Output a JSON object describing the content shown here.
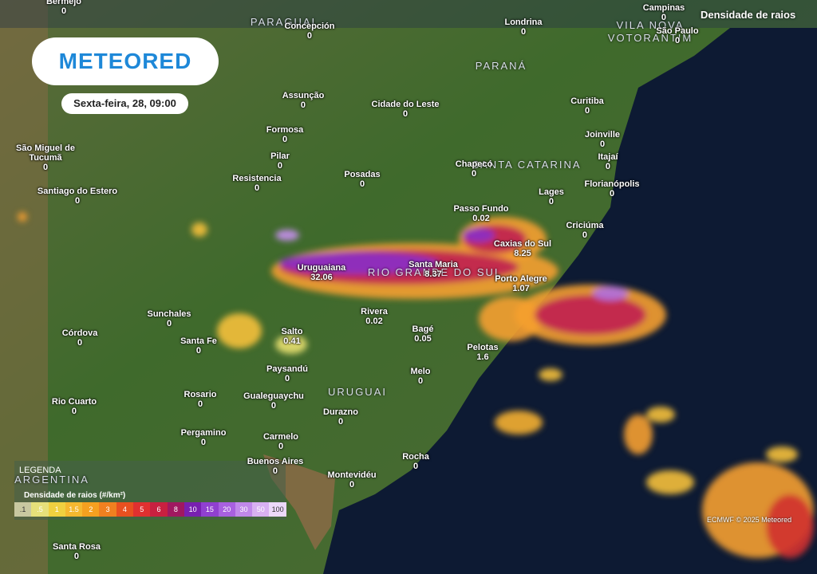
{
  "header": {
    "logo": "METEORED",
    "date": "Sexta-feira, 28, 09:00",
    "layer": "Densidade de raios"
  },
  "regions": [
    "PARAGUAI",
    "PARANÁ",
    "SANTA CATARINA",
    "RIO GRANDE DO SUL",
    "URUGUAI",
    "ARGENTINA",
    "VILA NOVA",
    "VOTORANTIM"
  ],
  "cities": [
    {
      "name": "Bermejo",
      "value": 0
    },
    {
      "name": "Concepción",
      "value": 0
    },
    {
      "name": "Londrina",
      "value": 0
    },
    {
      "name": "Campinas",
      "value": 0
    },
    {
      "name": "São Paulo",
      "value": 0
    },
    {
      "name": "Assunção",
      "value": 0
    },
    {
      "name": "Cidade do Leste",
      "value": 0
    },
    {
      "name": "Curitiba",
      "value": 0
    },
    {
      "name": "Formosa",
      "value": 0
    },
    {
      "name": "Joinville",
      "value": 0
    },
    {
      "name": "São Miguel de Tucumã",
      "value": 0
    },
    {
      "name": "Pilar",
      "value": 0
    },
    {
      "name": "Itajaí",
      "value": 0
    },
    {
      "name": "Chapecó",
      "value": 0
    },
    {
      "name": "Posadas",
      "value": 0
    },
    {
      "name": "Resistencia",
      "value": 0
    },
    {
      "name": "Florianópolis",
      "value": 0
    },
    {
      "name": "Santiago do Estero",
      "value": 0
    },
    {
      "name": "Lages",
      "value": 0
    },
    {
      "name": "Passo Fundo",
      "value": 0.02
    },
    {
      "name": "Criciúma",
      "value": 0
    },
    {
      "name": "Caxias do Sul",
      "value": 8.25
    },
    {
      "name": "Santa Maria",
      "value": 8.37
    },
    {
      "name": "Uruguaiana",
      "value": 32.06
    },
    {
      "name": "Porto Alegre",
      "value": 1.07
    },
    {
      "name": "Rivera",
      "value": 0.02
    },
    {
      "name": "Sunchales",
      "value": 0
    },
    {
      "name": "Bagé",
      "value": 0.05
    },
    {
      "name": "Salto",
      "value": 0.41
    },
    {
      "name": "Córdova",
      "value": 0
    },
    {
      "name": "Santa Fe",
      "value": 0
    },
    {
      "name": "Pelotas",
      "value": 1.6
    },
    {
      "name": "Paysandú",
      "value": 0
    },
    {
      "name": "Melo",
      "value": 0
    },
    {
      "name": "Rosario",
      "value": 0
    },
    {
      "name": "Gualeguaychu",
      "value": 0
    },
    {
      "name": "Rio Cuarto",
      "value": 0
    },
    {
      "name": "Durazno",
      "value": 0
    },
    {
      "name": "Pergamino",
      "value": 0
    },
    {
      "name": "Carmelo",
      "value": 0
    },
    {
      "name": "Rocha",
      "value": 0
    },
    {
      "name": "Buenos Aires",
      "value": 0
    },
    {
      "name": "Montevidéu",
      "value": 0
    },
    {
      "name": "Santa Rosa",
      "value": 0
    }
  ],
  "legend": {
    "title": "LEGENDA",
    "subtitle": "Densidade de raios (#/km²)",
    "labels": [
      ".1",
      ".5",
      "1",
      "1.5",
      "2",
      "3",
      "4",
      "5",
      "6",
      "8",
      "10",
      "15",
      "20",
      "30",
      "50",
      "100"
    ]
  },
  "credit": "ECMWF © 2025 Meteored"
}
